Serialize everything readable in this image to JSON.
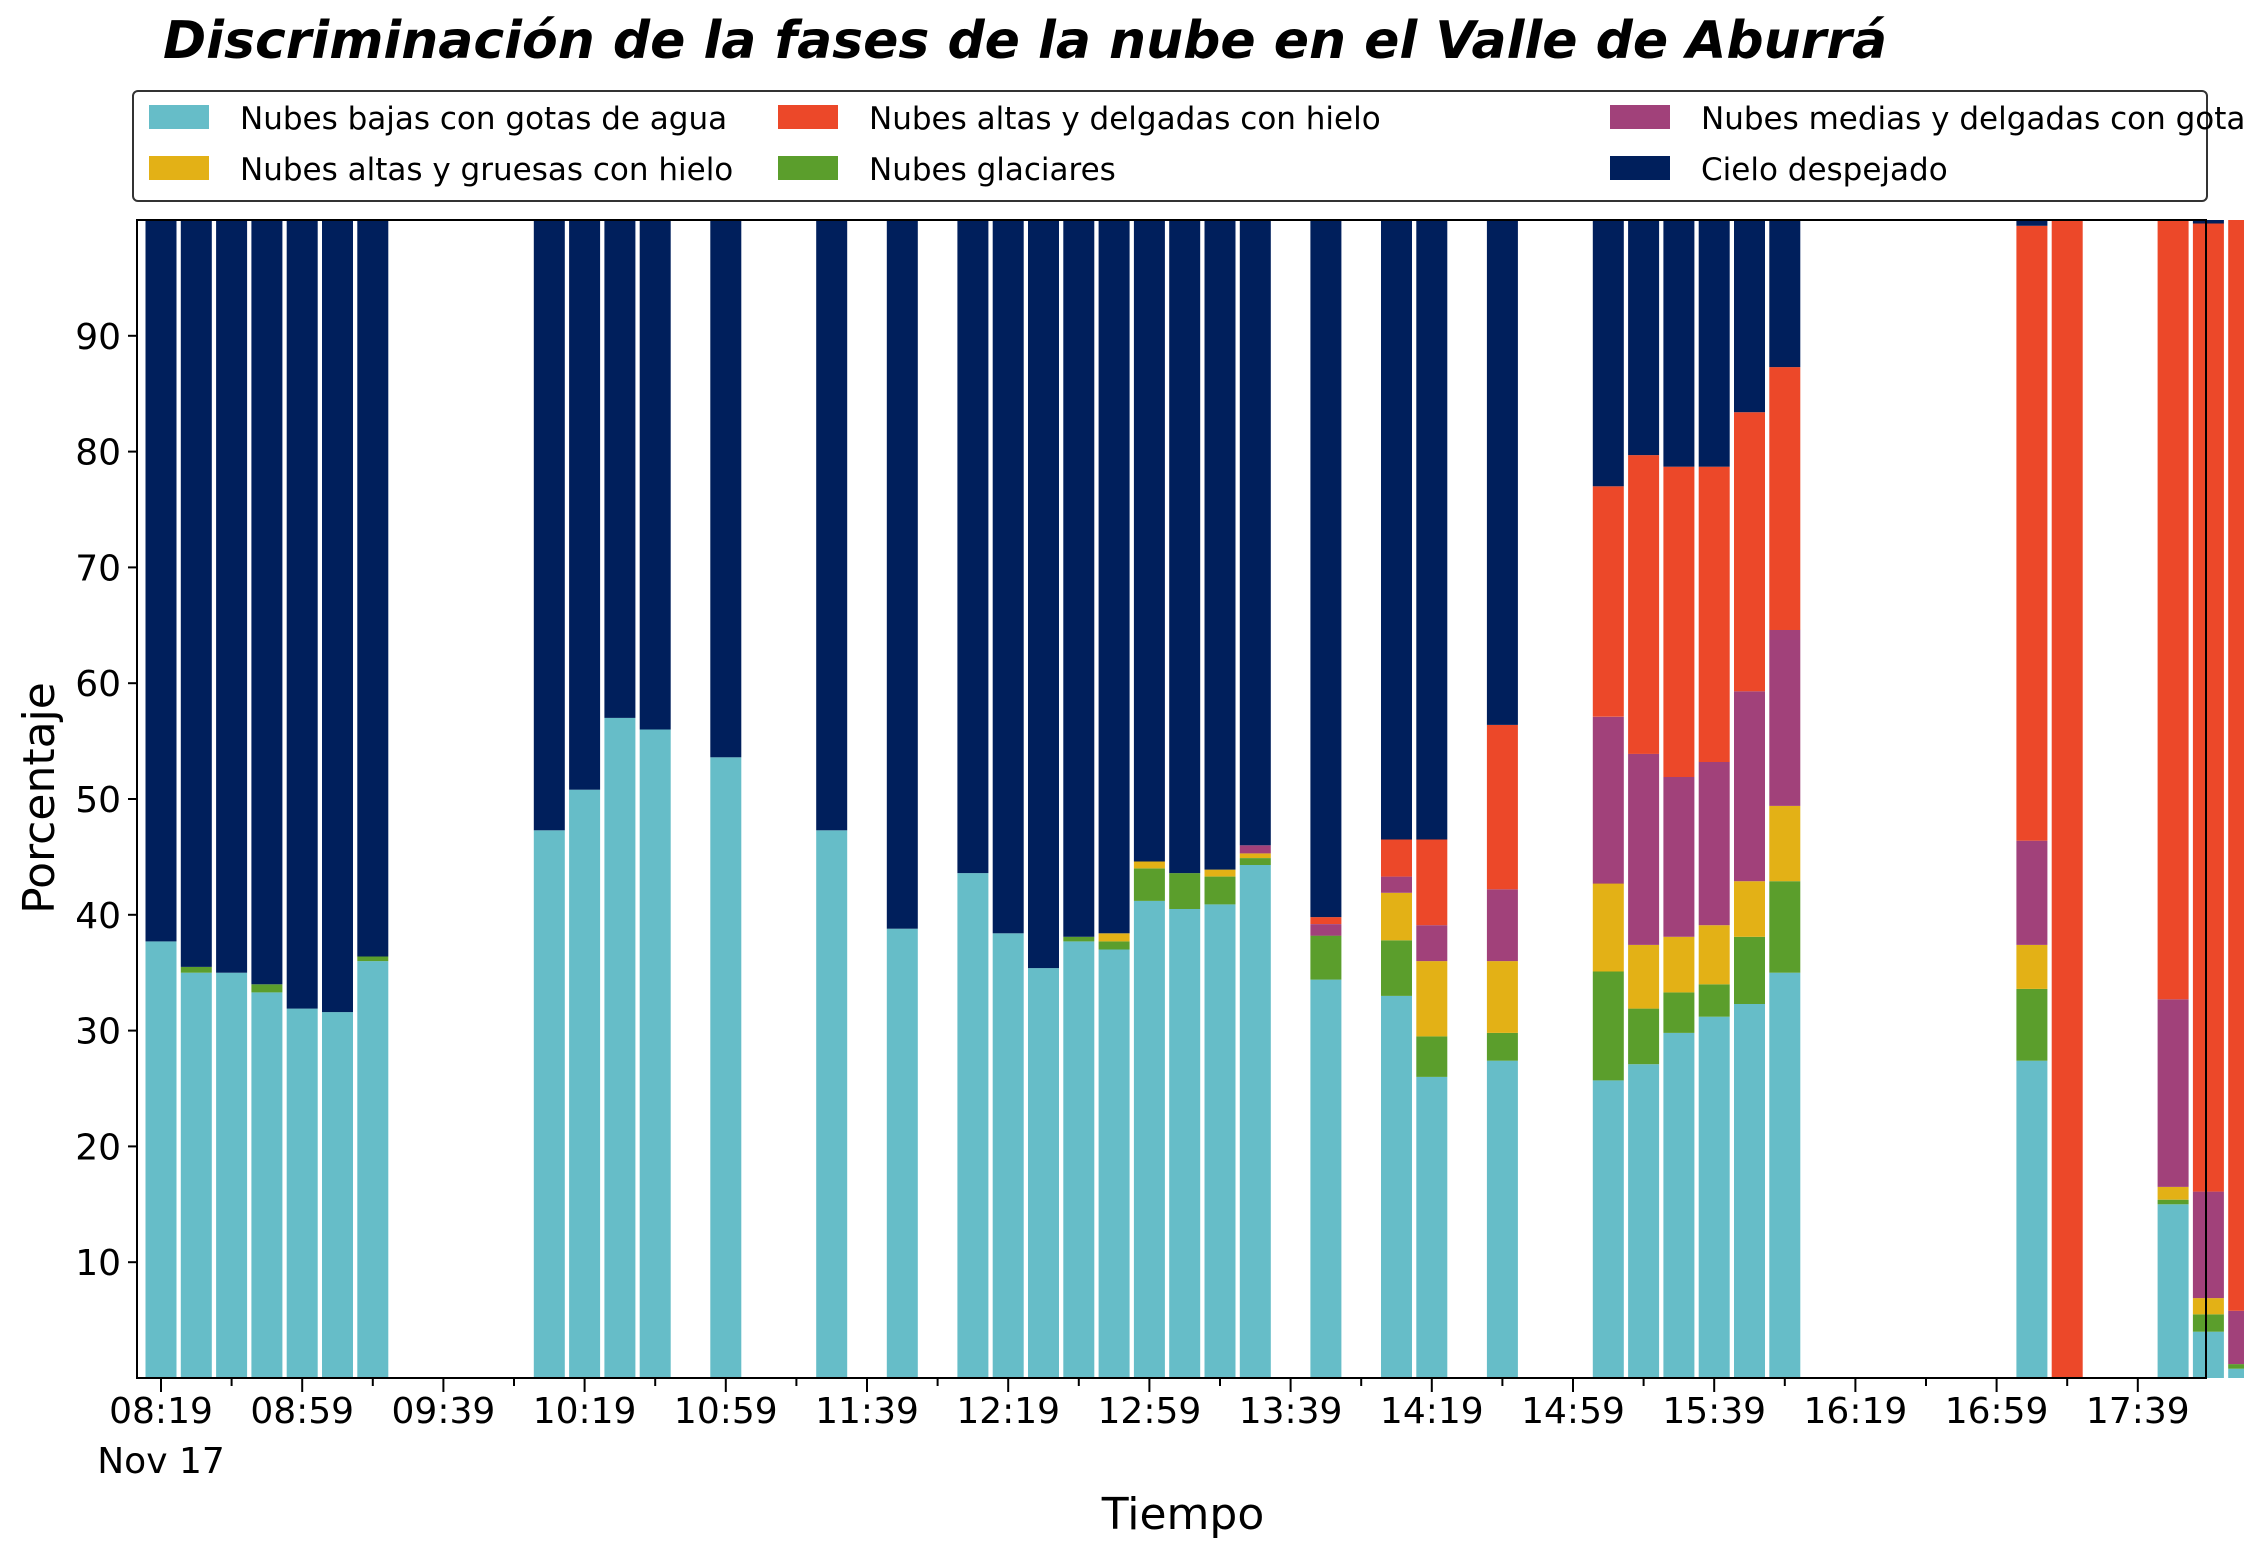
{
  "colors": {
    "low_water": "#66BDC8",
    "glaciated": "#5B9E2C",
    "thick_ice": "#E3B116",
    "mid_thin_water": "#A1417A",
    "high_thin_ice": "#EC4829",
    "clear": "#001F5C"
  },
  "chart_data": {
    "type": "bar",
    "stacked": true,
    "title": "Discriminación de la fases de la nube en el Valle de Aburrá",
    "xlabel": "Tiempo",
    "ylabel": "Porcentaje",
    "ylim": [
      0,
      100
    ],
    "yticks": [
      10,
      20,
      30,
      40,
      50,
      60,
      70,
      80,
      90
    ],
    "xtick_labels": [
      "08:19",
      "08:59",
      "09:39",
      "10:19",
      "10:59",
      "11:39",
      "12:19",
      "12:59",
      "13:39",
      "14:19",
      "14:59",
      "15:39",
      "16:19",
      "16:59",
      "17:39"
    ],
    "xtick_sublabel": "Nov 17",
    "slot_minutes": 10,
    "start_time": "08:19",
    "legend_position": "top",
    "legend": [
      {
        "name": "Nubes bajas con gotas de agua",
        "color_key": "low_water"
      },
      {
        "name": "Nubes altas y gruesas con hielo",
        "color_key": "thick_ice"
      },
      {
        "name": "Nubes altas y delgadas con hielo",
        "color_key": "high_thin_ice"
      },
      {
        "name": "Nubes glaciares",
        "color_key": "glaciated"
      },
      {
        "name": "Nubes medias y delgadas con gotas de agua",
        "color_key": "mid_thin_water"
      },
      {
        "name": "Cielo despejado",
        "color_key": "clear"
      }
    ],
    "bars": [
      {
        "time": "08:19",
        "low_water": 37.7,
        "glaciated": 0,
        "thick_ice": 0,
        "mid_thin_water": 0,
        "high_thin_ice": 0,
        "clear": 62.3
      },
      {
        "time": "08:29",
        "low_water": 35.0,
        "glaciated": 0.5,
        "thick_ice": 0,
        "mid_thin_water": 0,
        "high_thin_ice": 0,
        "clear": 64.5
      },
      {
        "time": "08:39",
        "low_water": 35.0,
        "glaciated": 0,
        "thick_ice": 0,
        "mid_thin_water": 0,
        "high_thin_ice": 0,
        "clear": 65.0
      },
      {
        "time": "08:49",
        "low_water": 33.3,
        "glaciated": 0.7,
        "thick_ice": 0,
        "mid_thin_water": 0,
        "high_thin_ice": 0,
        "clear": 66.0
      },
      {
        "time": "08:59",
        "low_water": 31.9,
        "glaciated": 0,
        "thick_ice": 0,
        "mid_thin_water": 0,
        "high_thin_ice": 0,
        "clear": 68.1
      },
      {
        "time": "09:09",
        "low_water": 31.6,
        "glaciated": 0,
        "thick_ice": 0,
        "mid_thin_water": 0,
        "high_thin_ice": 0,
        "clear": 68.4
      },
      {
        "time": "09:19",
        "low_water": 36.0,
        "glaciated": 0.4,
        "thick_ice": 0,
        "mid_thin_water": 0,
        "high_thin_ice": 0,
        "clear": 63.6
      },
      {
        "time": "10:09",
        "low_water": 47.3,
        "glaciated": 0,
        "thick_ice": 0,
        "mid_thin_water": 0,
        "high_thin_ice": 0,
        "clear": 52.7
      },
      {
        "time": "10:19",
        "low_water": 50.8,
        "glaciated": 0,
        "thick_ice": 0,
        "mid_thin_water": 0,
        "high_thin_ice": 0,
        "clear": 49.2
      },
      {
        "time": "10:29",
        "low_water": 57.0,
        "glaciated": 0,
        "thick_ice": 0,
        "mid_thin_water": 0,
        "high_thin_ice": 0,
        "clear": 43.0
      },
      {
        "time": "10:39",
        "low_water": 56.0,
        "glaciated": 0,
        "thick_ice": 0,
        "mid_thin_water": 0,
        "high_thin_ice": 0,
        "clear": 44.0
      },
      {
        "time": "10:59",
        "low_water": 53.6,
        "glaciated": 0,
        "thick_ice": 0,
        "mid_thin_water": 0,
        "high_thin_ice": 0,
        "clear": 46.4
      },
      {
        "time": "11:29",
        "low_water": 47.3,
        "glaciated": 0,
        "thick_ice": 0,
        "mid_thin_water": 0,
        "high_thin_ice": 0,
        "clear": 52.7
      },
      {
        "time": "11:49",
        "low_water": 38.8,
        "glaciated": 0,
        "thick_ice": 0,
        "mid_thin_water": 0,
        "high_thin_ice": 0,
        "clear": 61.2
      },
      {
        "time": "12:09",
        "low_water": 43.6,
        "glaciated": 0,
        "thick_ice": 0,
        "mid_thin_water": 0,
        "high_thin_ice": 0,
        "clear": 56.4
      },
      {
        "time": "12:19",
        "low_water": 38.4,
        "glaciated": 0,
        "thick_ice": 0,
        "mid_thin_water": 0,
        "high_thin_ice": 0,
        "clear": 61.6
      },
      {
        "time": "12:29",
        "low_water": 35.4,
        "glaciated": 0,
        "thick_ice": 0,
        "mid_thin_water": 0,
        "high_thin_ice": 0,
        "clear": 64.6
      },
      {
        "time": "12:39",
        "low_water": 37.7,
        "glaciated": 0.4,
        "thick_ice": 0,
        "mid_thin_water": 0,
        "high_thin_ice": 0,
        "clear": 61.9
      },
      {
        "time": "12:49",
        "low_water": 37.0,
        "glaciated": 0.7,
        "thick_ice": 0.7,
        "mid_thin_water": 0,
        "high_thin_ice": 0,
        "clear": 61.6
      },
      {
        "time": "12:59",
        "low_water": 41.2,
        "glaciated": 2.8,
        "thick_ice": 0.6,
        "mid_thin_water": 0,
        "high_thin_ice": 0,
        "clear": 55.4
      },
      {
        "time": "13:09",
        "low_water": 40.5,
        "glaciated": 3.1,
        "thick_ice": 0,
        "mid_thin_water": 0,
        "high_thin_ice": 0,
        "clear": 56.4
      },
      {
        "time": "13:19",
        "low_water": 40.9,
        "glaciated": 2.4,
        "thick_ice": 0.6,
        "mid_thin_water": 0,
        "high_thin_ice": 0,
        "clear": 56.1
      },
      {
        "time": "13:29",
        "low_water": 44.3,
        "glaciated": 0.6,
        "thick_ice": 0.4,
        "mid_thin_water": 0.7,
        "high_thin_ice": 0,
        "clear": 54.0
      },
      {
        "time": "13:49",
        "low_water": 34.4,
        "glaciated": 3.8,
        "thick_ice": 0,
        "mid_thin_water": 1.0,
        "high_thin_ice": 0.6,
        "clear": 60.2
      },
      {
        "time": "14:09",
        "low_water": 33.0,
        "glaciated": 4.8,
        "thick_ice": 4.1,
        "mid_thin_water": 1.4,
        "high_thin_ice": 3.2,
        "clear": 53.5
      },
      {
        "time": "14:19",
        "low_water": 26.0,
        "glaciated": 3.5,
        "thick_ice": 6.5,
        "mid_thin_water": 3.1,
        "high_thin_ice": 7.4,
        "clear": 53.5
      },
      {
        "time": "14:39",
        "low_water": 27.4,
        "glaciated": 2.4,
        "thick_ice": 6.2,
        "mid_thin_water": 6.2,
        "high_thin_ice": 14.2,
        "clear": 43.6
      },
      {
        "time": "15:09",
        "low_water": 25.7,
        "glaciated": 9.4,
        "thick_ice": 7.6,
        "mid_thin_water": 14.4,
        "high_thin_ice": 19.9,
        "clear": 23.0
      },
      {
        "time": "15:19",
        "low_water": 27.1,
        "glaciated": 4.8,
        "thick_ice": 5.5,
        "mid_thin_water": 16.5,
        "high_thin_ice": 25.8,
        "clear": 20.3
      },
      {
        "time": "15:29",
        "low_water": 29.8,
        "glaciated": 3.5,
        "thick_ice": 4.8,
        "mid_thin_water": 13.8,
        "high_thin_ice": 26.8,
        "clear": 21.3
      },
      {
        "time": "15:39",
        "low_water": 31.2,
        "glaciated": 2.8,
        "thick_ice": 5.1,
        "mid_thin_water": 14.1,
        "high_thin_ice": 25.5,
        "clear": 21.3
      },
      {
        "time": "15:49",
        "low_water": 32.3,
        "glaciated": 5.8,
        "thick_ice": 4.8,
        "mid_thin_water": 16.4,
        "high_thin_ice": 24.1,
        "clear": 16.6
      },
      {
        "time": "15:59",
        "low_water": 35.0,
        "glaciated": 7.9,
        "thick_ice": 6.5,
        "mid_thin_water": 15.2,
        "high_thin_ice": 22.7,
        "clear": 12.7
      },
      {
        "time": "17:09",
        "low_water": 27.4,
        "glaciated": 6.2,
        "thick_ice": 3.8,
        "mid_thin_water": 9.0,
        "high_thin_ice": 53.1,
        "clear": 0.5
      },
      {
        "time": "17:19",
        "low_water": 0,
        "glaciated": 0,
        "thick_ice": 0,
        "mid_thin_water": 0,
        "high_thin_ice": 100,
        "clear": 0
      },
      {
        "time": "17:49",
        "low_water": 15.0,
        "glaciated": 0.4,
        "thick_ice": 1.1,
        "mid_thin_water": 16.2,
        "high_thin_ice": 67.3,
        "clear": 0
      },
      {
        "time": "17:59",
        "low_water": 4.0,
        "glaciated": 1.5,
        "thick_ice": 1.4,
        "mid_thin_water": 9.2,
        "high_thin_ice": 83.6,
        "clear": 0.3
      },
      {
        "time": "18:09",
        "low_water": 0.8,
        "glaciated": 0.4,
        "thick_ice": 0,
        "mid_thin_water": 4.6,
        "high_thin_ice": 94.2,
        "clear": 0
      }
    ]
  }
}
